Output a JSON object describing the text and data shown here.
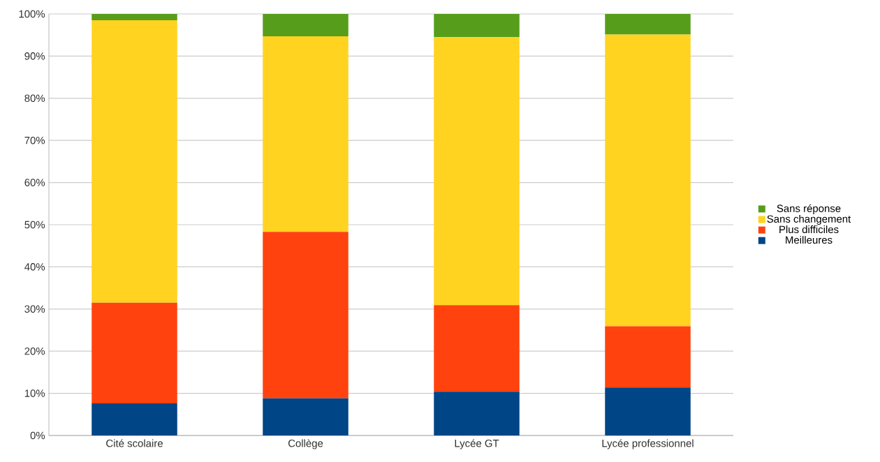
{
  "chart_data": {
    "type": "bar",
    "stacked": true,
    "categories": [
      "Cité scolaire",
      "Collège",
      "Lycée GT",
      "Lycée professionnel"
    ],
    "series": [
      {
        "name": "Meilleures",
        "color": "#004586",
        "values": [
          7.6,
          8.8,
          10.4,
          11.4
        ]
      },
      {
        "name": "Plus difficiles",
        "color": "#ff420e",
        "values": [
          23.9,
          39.5,
          20.5,
          14.5
        ]
      },
      {
        "name": "Sans changement",
        "color": "#ffd320",
        "values": [
          67.0,
          46.4,
          63.6,
          69.2
        ]
      },
      {
        "name": "Sans réponse",
        "color": "#579d1c",
        "values": [
          1.5,
          5.3,
          5.5,
          4.9
        ]
      }
    ],
    "ylim": [
      0,
      100
    ],
    "yticks": [
      {
        "value": 0,
        "label": "0%"
      },
      {
        "value": 10,
        "label": "10%"
      },
      {
        "value": 20,
        "label": "20%"
      },
      {
        "value": 30,
        "label": "30%"
      },
      {
        "value": 40,
        "label": "40%"
      },
      {
        "value": 50,
        "label": "50%"
      },
      {
        "value": 60,
        "label": "60%"
      },
      {
        "value": 70,
        "label": "70%"
      },
      {
        "value": 80,
        "label": "80%"
      },
      {
        "value": 90,
        "label": "90%"
      },
      {
        "value": 100,
        "label": "100%"
      }
    ],
    "grid": "y",
    "legend": "right"
  }
}
